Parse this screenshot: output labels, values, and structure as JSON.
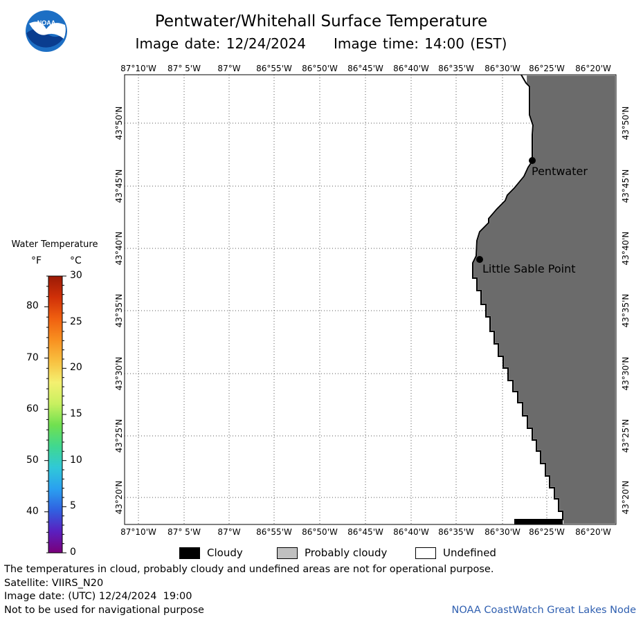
{
  "header": {
    "logo_text": "NOAA",
    "title": "Pentwater/Whitehall Surface Temperature",
    "image_date_label": "Image date: 12/24/2024",
    "image_time_label": "Image time: 14:00 (EST)"
  },
  "map": {
    "land_color": "#6b6b6b",
    "coast_color": "#000000",
    "lon_ticks": [
      "87°10'W",
      "87° 5'W",
      "87°W",
      "86°55'W",
      "86°50'W",
      "86°45'W",
      "86°40'W",
      "86°35'W",
      "86°30'W",
      "86°25'W",
      "86°20'W"
    ],
    "lat_ticks": [
      "43°50'N",
      "43°45'N",
      "43°40'N",
      "43°35'N",
      "43°30'N",
      "43°25'N",
      "43°20'N"
    ],
    "places": [
      {
        "name": "Pentwater",
        "lat": "43°47'N",
        "lon": "86°26'W"
      },
      {
        "name": "Little Sable Point",
        "lat": "43°39'N",
        "lon": "86°32'W"
      }
    ]
  },
  "colorbar": {
    "title": "Water Temperature",
    "unit_f": "°F",
    "unit_c": "°C",
    "f_labels": [
      "80",
      "70",
      "60",
      "50",
      "40"
    ],
    "c_labels": [
      "30",
      "25",
      "20",
      "15",
      "10",
      "5",
      "0"
    ],
    "colors": [
      "#7a007a",
      "#5a1fbf",
      "#3060e0",
      "#2aa0f0",
      "#30c8d8",
      "#40d890",
      "#70e050",
      "#c8f060",
      "#f4f070",
      "#f8c040",
      "#f89020",
      "#f06010",
      "#d03008",
      "#9a1a06"
    ]
  },
  "legend": {
    "cloudy": "Cloudy",
    "probably_cloudy": "Probably cloudy",
    "undefined": "Undefined"
  },
  "footer": {
    "note": "The temperatures in cloud, probably cloudy and undefined areas are not for operational purpose.",
    "satellite": "Satellite: VIIRS_N20",
    "utc_date": "Image date: (UTC) 12/24/2024  19:00",
    "nav_warning": "Not to be used for navigational purpose",
    "credit": "NOAA CoastWatch Great Lakes Node"
  }
}
